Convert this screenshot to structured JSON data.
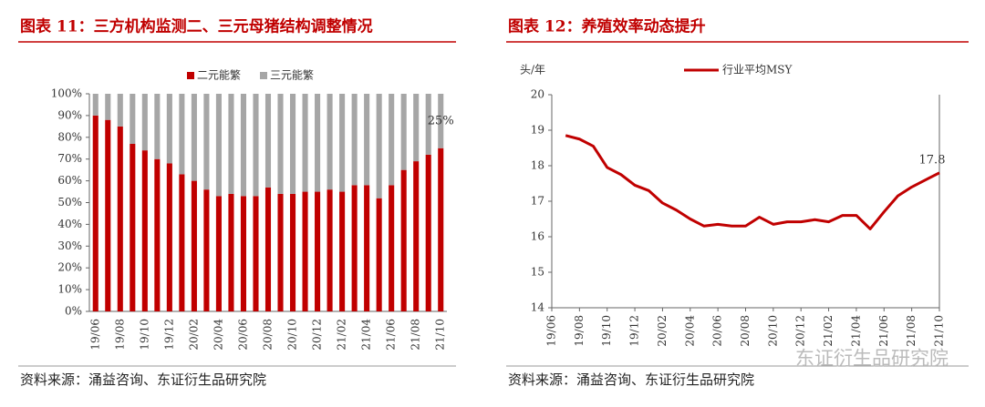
{
  "chart_data": [
    {
      "type": "stacked_bar",
      "title": "图表 11：三方机构监测二、三元母猪结构调整情况",
      "source": "资料来源：涌益咨询、东证衍生品研究院",
      "categories": [
        "19/06",
        null,
        "19/08",
        null,
        "19/10",
        null,
        "19/12",
        null,
        "20/02",
        null,
        "20/04",
        null,
        "20/06",
        null,
        "20/08",
        null,
        "20/10",
        null,
        "20/12",
        null,
        "21/02",
        null,
        "21/04",
        null,
        "21/06",
        null,
        "21/08",
        null,
        "21/10"
      ],
      "series": [
        {
          "name": "二元能繁",
          "color": "#c00000",
          "values": [
            90,
            88,
            85,
            77,
            74,
            70,
            68,
            63,
            60,
            56,
            53,
            54,
            53,
            53,
            57,
            54,
            54,
            55,
            55,
            56,
            55,
            58,
            58,
            52,
            58,
            65,
            69,
            72,
            75
          ]
        },
        {
          "name": "三元能繁",
          "color": "#a6a6a6",
          "values": [
            10,
            12,
            15,
            23,
            26,
            30,
            32,
            37,
            40,
            44,
            47,
            46,
            47,
            47,
            43,
            46,
            46,
            45,
            45,
            44,
            45,
            42,
            42,
            48,
            42,
            35,
            31,
            28,
            25
          ]
        }
      ],
      "annotations": [
        "25%"
      ],
      "ylim": [
        0,
        100
      ],
      "yticks": [
        {
          "value": 0,
          "label": "0%"
        },
        {
          "value": 10,
          "label": "10%"
        },
        {
          "value": 20,
          "label": "20%"
        },
        {
          "value": 30,
          "label": "30%"
        },
        {
          "value": 40,
          "label": "40%"
        },
        {
          "value": 50,
          "label": "50%"
        },
        {
          "value": 60,
          "label": "60%"
        },
        {
          "value": 70,
          "label": "70%"
        },
        {
          "value": 80,
          "label": "80%"
        },
        {
          "value": 90,
          "label": "90%"
        },
        {
          "value": 100,
          "label": "100%"
        }
      ],
      "legend": "top"
    },
    {
      "type": "line",
      "title": "图表 12：养殖效率动态提升",
      "source": "资料来源：涌益咨询、东证衍生品研究院",
      "y_label": "头/年",
      "categories": [
        "19/06",
        null,
        "19/08",
        null,
        "19/10",
        null,
        "19/12",
        null,
        "20/02",
        null,
        "20/04",
        null,
        "20/06",
        null,
        "20/08",
        null,
        "20/10",
        null,
        "20/12",
        null,
        "21/02",
        null,
        "21/04",
        null,
        "21/06",
        null,
        "21/08",
        null,
        "21/10"
      ],
      "series": [
        {
          "name": "行业平均MSY",
          "color": "#c00000",
          "values": [
            null,
            18.85,
            18.75,
            18.55,
            17.95,
            17.75,
            17.45,
            17.3,
            16.95,
            16.75,
            16.5,
            16.3,
            16.35,
            16.3,
            16.3,
            16.55,
            16.35,
            16.42,
            16.42,
            16.48,
            16.42,
            16.6,
            16.6,
            16.22,
            16.7,
            17.15,
            17.4,
            17.6,
            17.8
          ]
        }
      ],
      "ylim": [
        14,
        20
      ],
      "yticks": [
        14,
        15,
        16,
        17,
        18,
        19,
        20
      ],
      "legend": "top"
    }
  ],
  "watermark": "东证衍生品研究院"
}
